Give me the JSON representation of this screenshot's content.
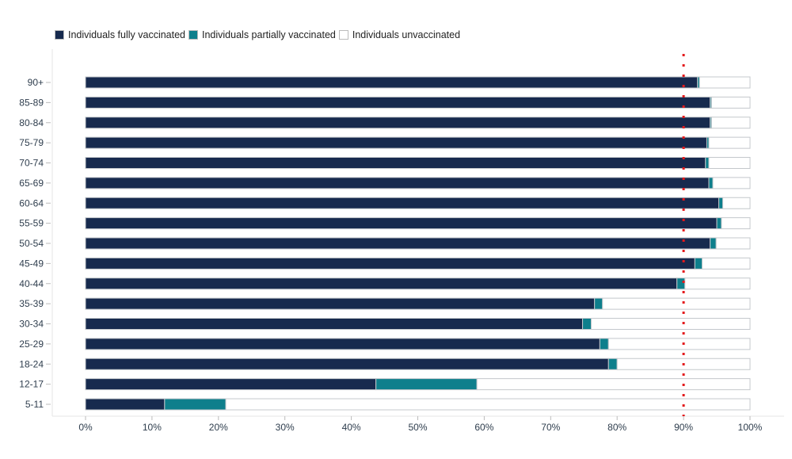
{
  "chart_data": {
    "type": "bar",
    "orientation": "horizontal",
    "stacked": true,
    "categories": [
      "90+",
      "85-89",
      "80-84",
      "75-79",
      "70-74",
      "65-69",
      "60-64",
      "55-59",
      "50-54",
      "45-49",
      "40-44",
      "35-39",
      "30-34",
      "25-29",
      "18-24",
      "12-17",
      "5-11"
    ],
    "series": [
      {
        "name": "Individuals fully vaccinated",
        "color": "#172a4e",
        "values": [
          92.1,
          94.0,
          94.0,
          93.5,
          93.3,
          93.8,
          95.3,
          95.0,
          94.0,
          91.7,
          89.0,
          76.6,
          74.8,
          77.4,
          78.7,
          43.7,
          11.9
        ]
      },
      {
        "name": "Individuals partially vaccinated",
        "color": "#0e7f8c",
        "values": [
          0.3,
          0.2,
          0.2,
          0.3,
          0.5,
          0.6,
          0.6,
          0.7,
          0.9,
          1.1,
          1.2,
          1.2,
          1.3,
          1.3,
          1.3,
          15.2,
          9.2
        ]
      },
      {
        "name": "Individuals unvaccinated",
        "color": "#ffffff",
        "values": [
          7.6,
          5.8,
          5.8,
          6.2,
          6.2,
          5.6,
          4.1,
          4.3,
          5.1,
          7.2,
          9.8,
          22.2,
          23.9,
          21.3,
          20.0,
          41.1,
          78.9
        ]
      }
    ],
    "xlim": [
      0,
      100
    ],
    "xticks": [
      "0%",
      "10%",
      "20%",
      "30%",
      "40%",
      "50%",
      "60%",
      "70%",
      "80%",
      "90%",
      "100%"
    ],
    "reference_line": {
      "value": 90,
      "color": "#e31a1c",
      "style": "dotted"
    },
    "legend_position": "top-left",
    "grid": false
  }
}
